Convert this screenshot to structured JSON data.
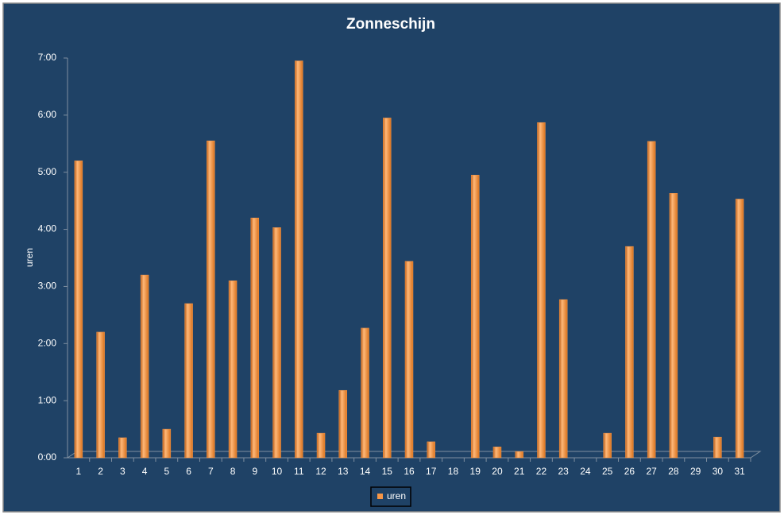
{
  "chart_data": {
    "type": "bar",
    "title": "Zonneschijn",
    "y_label": "uren",
    "categories": [
      "1",
      "2",
      "3",
      "4",
      "5",
      "6",
      "7",
      "8",
      "9",
      "10",
      "11",
      "12",
      "13",
      "14",
      "15",
      "16",
      "17",
      "18",
      "19",
      "20",
      "21",
      "22",
      "23",
      "24",
      "25",
      "26",
      "27",
      "28",
      "29",
      "30",
      "31"
    ],
    "series": [
      {
        "name": "uren",
        "color": "#f79646",
        "values": [
          5.2,
          2.2,
          0.35,
          3.2,
          0.5,
          2.7,
          5.55,
          3.1,
          4.2,
          4.03,
          6.95,
          0.43,
          1.18,
          2.27,
          5.95,
          3.44,
          0.28,
          0,
          4.95,
          0.19,
          0.11,
          5.87,
          2.77,
          0,
          0.43,
          3.7,
          5.54,
          4.63,
          0,
          0.36,
          4.53
        ]
      }
    ],
    "ylim": [
      0,
      7
    ],
    "yticks": [
      {
        "value": 0,
        "label": "0:00"
      },
      {
        "value": 1,
        "label": "1:00"
      },
      {
        "value": 2,
        "label": "2:00"
      },
      {
        "value": 3,
        "label": "3:00"
      },
      {
        "value": 4,
        "label": "4:00"
      },
      {
        "value": 5,
        "label": "5:00"
      },
      {
        "value": 6,
        "label": "6:00"
      },
      {
        "value": 7,
        "label": "7:00"
      }
    ],
    "legend": "bottom",
    "grid": false
  }
}
